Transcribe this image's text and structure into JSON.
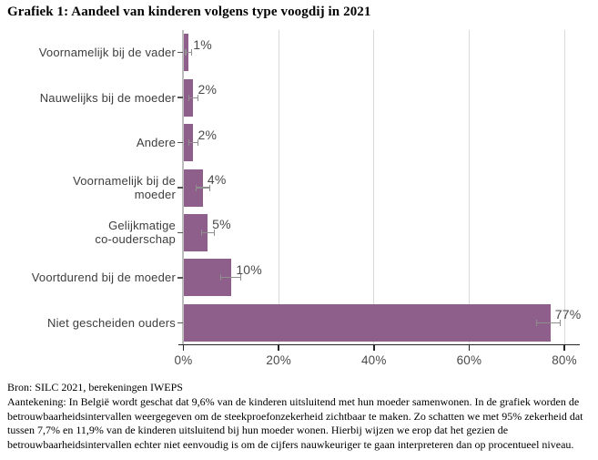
{
  "chart_data": {
    "type": "bar",
    "orientation": "horizontal",
    "title": "Grafiek 1: Aandeel van kinderen volgens type voogdij in 2021",
    "categories": [
      "Voornamelijk bij de vader",
      "Nauwelijks bij de moeder",
      "Andere",
      "Voornamelijk bij de\nmoeder",
      "Gelijkmatige\nco-ouderschap",
      "Voortdurend bij de moeder",
      "Niet gescheiden ouders"
    ],
    "values": [
      1,
      2,
      2,
      4,
      5,
      10,
      77
    ],
    "value_labels": [
      "1%",
      "2%",
      "2%",
      "4%",
      "5%",
      "10%",
      "77%"
    ],
    "error_low": [
      0.4,
      1.1,
      1.1,
      2.6,
      3.7,
      7.7,
      74.0
    ],
    "error_high": [
      1.7,
      3.0,
      3.0,
      5.4,
      6.4,
      11.9,
      79.0
    ],
    "xlim": [
      0,
      83
    ],
    "x_ticks": [
      0,
      20,
      40,
      60,
      80
    ],
    "x_tick_labels": [
      "0%",
      "20%",
      "40%",
      "60%",
      "80%"
    ],
    "grid": true,
    "colors": {
      "bar": "#8e5f8a",
      "error_bar": "#8f8f8f",
      "gridline": "#d9d9d9",
      "axis": "#262626",
      "y_axis_line": "#bdbdbd",
      "tick_mark": "#555555"
    }
  },
  "footer": {
    "source": "Bron: SILC 2021, berekeningen IWEPS",
    "note": "Aantekening: In België wordt geschat dat 9,6% van de kinderen uitsluitend met hun moeder samenwonen. In de grafiek worden de betrouwbaarheidsintervallen weergegeven om de steekproefonzekerheid zichtbaar te maken. Zo schatten we met 95% zekerheid dat tussen 7,7% en 11,9% van de kinderen uitsluitend bij hun moeder wonen. Hierbij wijzen we erop dat het gezien de betrouwbaarheidsintervallen echter niet eenvoudig is om de cijfers nauwkeuriger te gaan interpreteren dan op procentueel niveau."
  }
}
